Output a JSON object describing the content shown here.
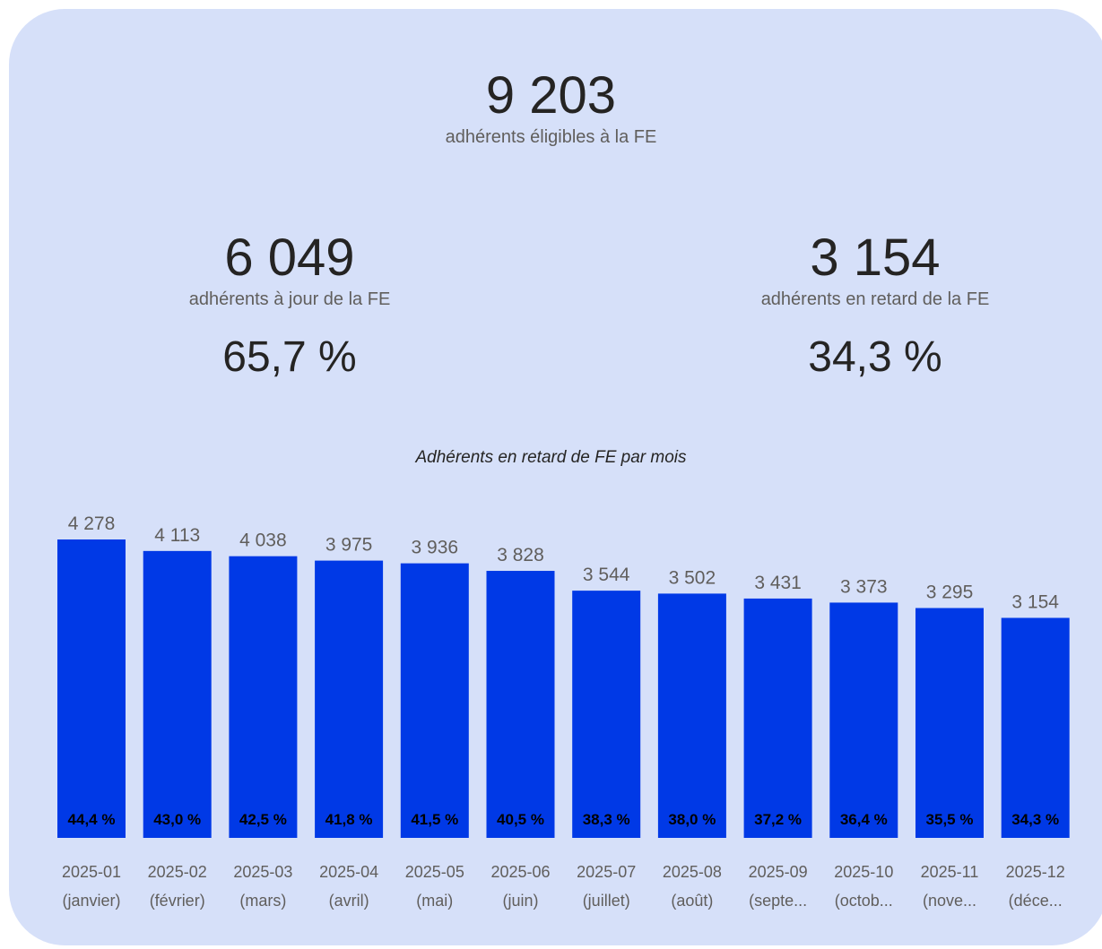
{
  "kpis": {
    "total": {
      "value": "9 203",
      "label": "adhérents éligibles à la FE"
    },
    "up_to_date": {
      "value": "6 049",
      "label": "adhérents à jour de la FE",
      "pct": "65,7 %"
    },
    "late": {
      "value": "3 154",
      "label": "adhérents en retard de la FE",
      "pct": "34,3 %"
    }
  },
  "colors": {
    "card_bg": "#d6e0f9",
    "bar": "#0039e6",
    "value_label": "#605e5c",
    "pct_label": "#000000"
  },
  "chart_data": {
    "type": "bar",
    "title": "Adhérents en retard de FE par mois",
    "categories": [
      [
        "2025-01",
        "(janvier)"
      ],
      [
        "2025-02",
        "(février)"
      ],
      [
        "2025-03",
        "(mars)"
      ],
      [
        "2025-04",
        "(avril)"
      ],
      [
        "2025-05",
        "(mai)"
      ],
      [
        "2025-06",
        "(juin)"
      ],
      [
        "2025-07",
        "(juillet)"
      ],
      [
        "2025-08",
        "(août)"
      ],
      [
        "2025-09",
        "(septe..."
      ],
      [
        "2025-10",
        "(octob..."
      ],
      [
        "2025-11",
        "(nove..."
      ],
      [
        "2025-12",
        "(déce..."
      ]
    ],
    "values": [
      4278,
      4113,
      4038,
      3975,
      3936,
      3828,
      3544,
      3502,
      3431,
      3373,
      3295,
      3154
    ],
    "value_labels": [
      "4 278",
      "4 113",
      "4 038",
      "3 975",
      "3 936",
      "3 828",
      "3 544",
      "3 502",
      "3 431",
      "3 373",
      "3 295",
      "3 154"
    ],
    "pct_labels": [
      "44,4 %",
      "43,0 %",
      "42,5 %",
      "41,8 %",
      "41,5 %",
      "40,5 %",
      "38,3 %",
      "38,0 %",
      "37,2 %",
      "36,4 %",
      "35,5 %",
      "34,3 %"
    ],
    "ylim": [
      0,
      4278
    ]
  }
}
